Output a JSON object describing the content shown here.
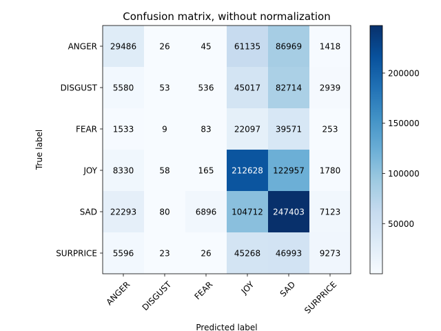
{
  "chart_data": {
    "type": "heatmap",
    "title": "Confusion matrix, without normalization",
    "xlabel": "Predicted label",
    "ylabel": "True label",
    "x_categories": [
      "ANGER",
      "DISGUST",
      "FEAR",
      "JOY",
      "SAD",
      "SURPRICE"
    ],
    "y_categories": [
      "ANGER",
      "DISGUST",
      "FEAR",
      "JOY",
      "SAD",
      "SURPRICE"
    ],
    "values": [
      [
        29486,
        26,
        45,
        61135,
        86969,
        1418
      ],
      [
        5580,
        53,
        536,
        45017,
        82714,
        2939
      ],
      [
        1533,
        9,
        83,
        22097,
        39571,
        253
      ],
      [
        8330,
        58,
        165,
        212628,
        122957,
        1780
      ],
      [
        22293,
        80,
        6896,
        104712,
        247403,
        7123
      ],
      [
        5596,
        23,
        26,
        45268,
        46993,
        9273
      ]
    ],
    "colormap": "Blues",
    "color_range": [
      9,
      247403
    ],
    "colorbar_ticks": [
      50000,
      100000,
      150000,
      200000
    ],
    "colorbar_tick_labels": [
      "50000",
      "100000",
      "150000",
      "200000"
    ],
    "grid": false
  }
}
